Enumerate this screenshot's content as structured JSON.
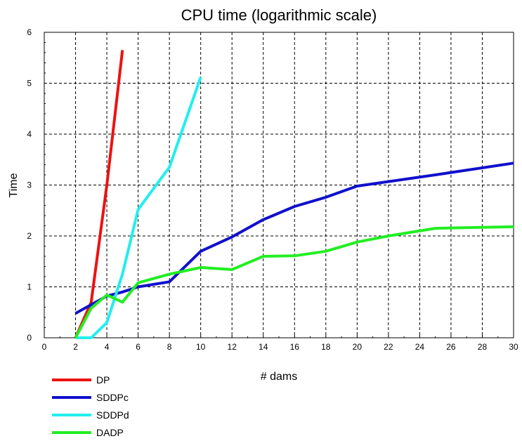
{
  "chart_data": {
    "type": "line",
    "title": "CPU time (logarithmic scale)",
    "xlabel": "# dams",
    "ylabel": "Time",
    "xlim": [
      0,
      30
    ],
    "ylim": [
      0,
      6
    ],
    "x_ticks": [
      0,
      2,
      4,
      6,
      8,
      10,
      12,
      14,
      16,
      18,
      20,
      22,
      24,
      26,
      28,
      30
    ],
    "y_ticks": [
      0,
      1,
      2,
      3,
      4,
      5,
      6
    ],
    "grid": true,
    "legend_position": "bottom-left outside",
    "series": [
      {
        "name": "DP",
        "color": "#ee1111",
        "points": [
          [
            2,
            0.0
          ],
          [
            3,
            0.7
          ],
          [
            4,
            3.0
          ],
          [
            5,
            5.65
          ]
        ]
      },
      {
        "name": "SDDPc",
        "color": "#1010cc",
        "points": [
          [
            2,
            0.48
          ],
          [
            3,
            0.65
          ],
          [
            4,
            0.82
          ],
          [
            5,
            0.9
          ],
          [
            6,
            1.0
          ],
          [
            8,
            1.1
          ],
          [
            10,
            1.7
          ],
          [
            12,
            1.98
          ],
          [
            14,
            2.32
          ],
          [
            16,
            2.58
          ],
          [
            18,
            2.76
          ],
          [
            20,
            2.98
          ],
          [
            25,
            3.2
          ],
          [
            30,
            3.43
          ]
        ]
      },
      {
        "name": "SDDPd",
        "color": "#22eeee",
        "points": [
          [
            2,
            0.0
          ],
          [
            3,
            0.0
          ],
          [
            4,
            0.3
          ],
          [
            5,
            1.25
          ],
          [
            6,
            2.52
          ],
          [
            8,
            3.35
          ],
          [
            10,
            5.12
          ]
        ]
      },
      {
        "name": "DADP",
        "color": "#22ee22",
        "points": [
          [
            2,
            0.0
          ],
          [
            3,
            0.58
          ],
          [
            4,
            0.84
          ],
          [
            5,
            0.7
          ],
          [
            6,
            1.08
          ],
          [
            8,
            1.25
          ],
          [
            10,
            1.38
          ],
          [
            12,
            1.34
          ],
          [
            14,
            1.6
          ],
          [
            16,
            1.61
          ],
          [
            18,
            1.7
          ],
          [
            20,
            1.88
          ],
          [
            22,
            2.0
          ],
          [
            25,
            2.15
          ],
          [
            30,
            2.18
          ]
        ]
      }
    ]
  }
}
